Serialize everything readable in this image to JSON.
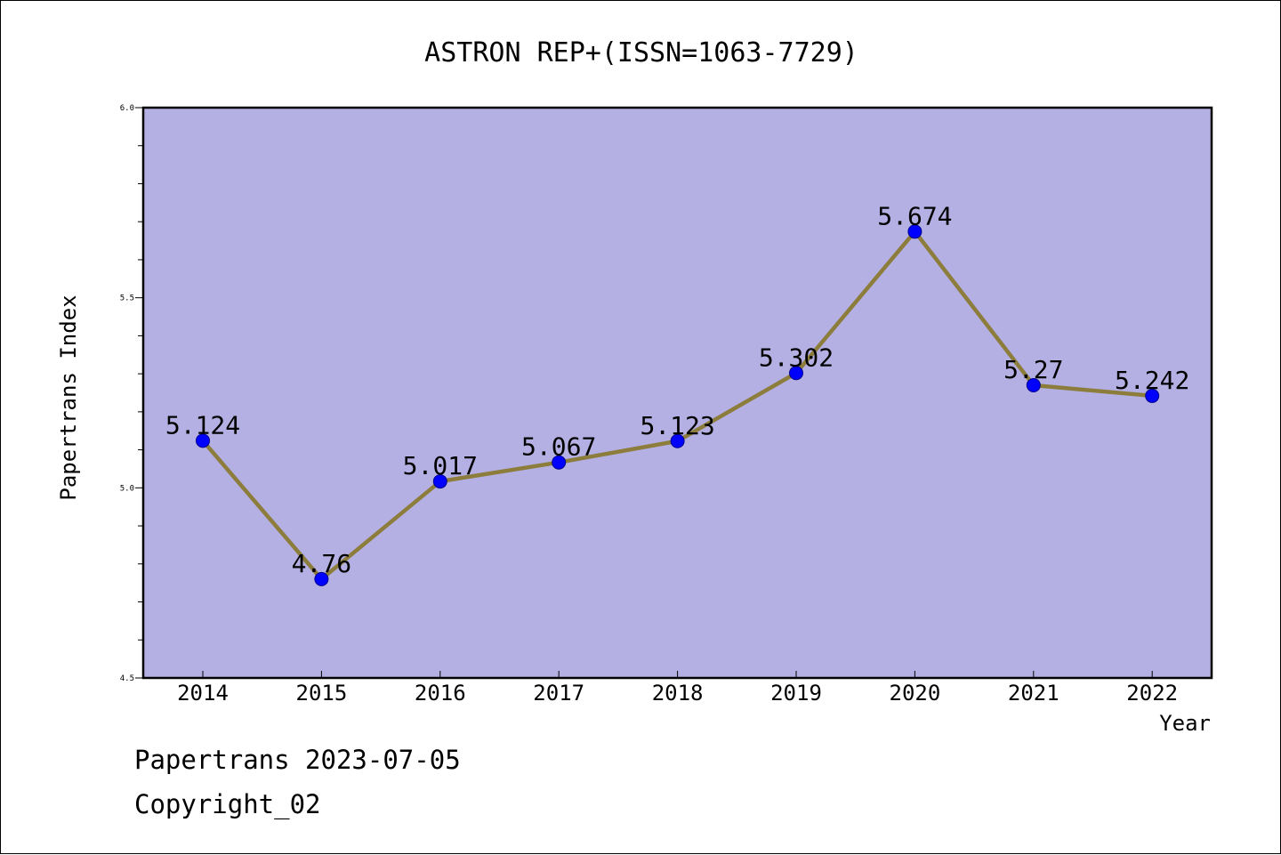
{
  "chart_data": {
    "type": "line",
    "title": "ASTRON REP+(ISSN=1063-7729)",
    "xlabel": "Year",
    "ylabel": "Papertrans Index",
    "categories": [
      "2014",
      "2015",
      "2016",
      "2017",
      "2018",
      "2019",
      "2020",
      "2021",
      "2022"
    ],
    "series": [
      {
        "values": [
          5.124,
          4.76,
          5.017,
          5.067,
          5.123,
          5.302,
          5.674,
          5.27,
          5.242
        ],
        "labels": [
          "5.124",
          "4.76",
          "5.017",
          "5.067",
          "5.123",
          "5.302",
          "5.674",
          "5.27",
          "5.242"
        ]
      }
    ],
    "ylim": [
      4.5,
      6.0
    ],
    "yticks": [
      "4.5",
      "5.0",
      "5.5",
      "6.0"
    ],
    "grid": false,
    "colors": {
      "plot_background": "#b5b0e3",
      "line": "#8c7d3c",
      "marker": "#0000ff"
    }
  },
  "footer": {
    "line1": "Papertrans 2023-07-05",
    "line2": "Copyright_02"
  }
}
